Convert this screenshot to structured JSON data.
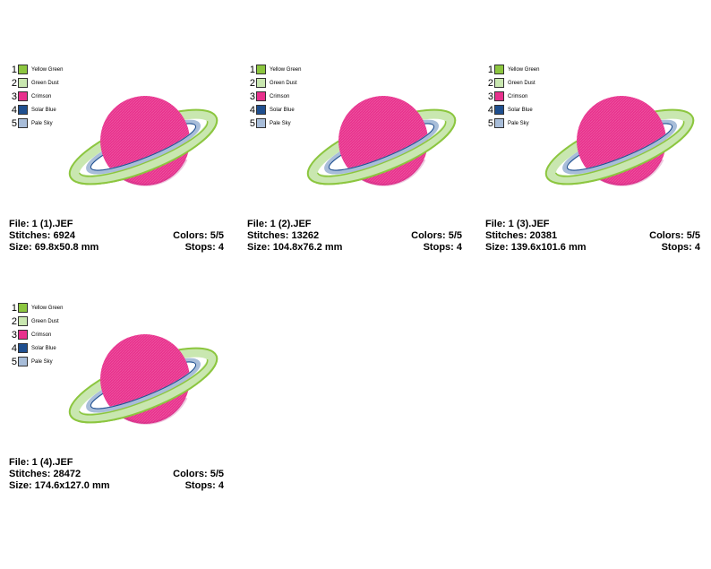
{
  "colors": [
    {
      "num": "1",
      "name": "Yellow Green",
      "hex": "#8cc63f"
    },
    {
      "num": "2",
      "name": "Green Dust",
      "hex": "#c9e7b0"
    },
    {
      "num": "3",
      "name": "Crimson",
      "hex": "#e8318d"
    },
    {
      "num": "4",
      "name": "Solar Blue",
      "hex": "#1f4f8f"
    },
    {
      "num": "5",
      "name": "Pale Sky",
      "hex": "#a8bdd9"
    }
  ],
  "files": [
    {
      "file": "File: 1 (1).JEF",
      "stitches": "Stitches: 6924",
      "size": "Size: 69.8x50.8 mm",
      "colors": "Colors: 5/5",
      "stops": "Stops: 4"
    },
    {
      "file": "File: 1 (2).JEF",
      "stitches": "Stitches: 13262",
      "size": "Size: 104.8x76.2 mm",
      "colors": "Colors: 5/5",
      "stops": "Stops: 4"
    },
    {
      "file": "File: 1 (3).JEF",
      "stitches": "Stitches: 20381",
      "size": "Size: 139.6x101.6 mm",
      "colors": "Colors: 5/5",
      "stops": "Stops: 4"
    },
    {
      "file": "File: 1 (4).JEF",
      "stitches": "Stitches: 28472",
      "size": "Size: 174.6x127.0 mm",
      "colors": "Colors: 5/5",
      "stops": "Stops: 4"
    }
  ]
}
